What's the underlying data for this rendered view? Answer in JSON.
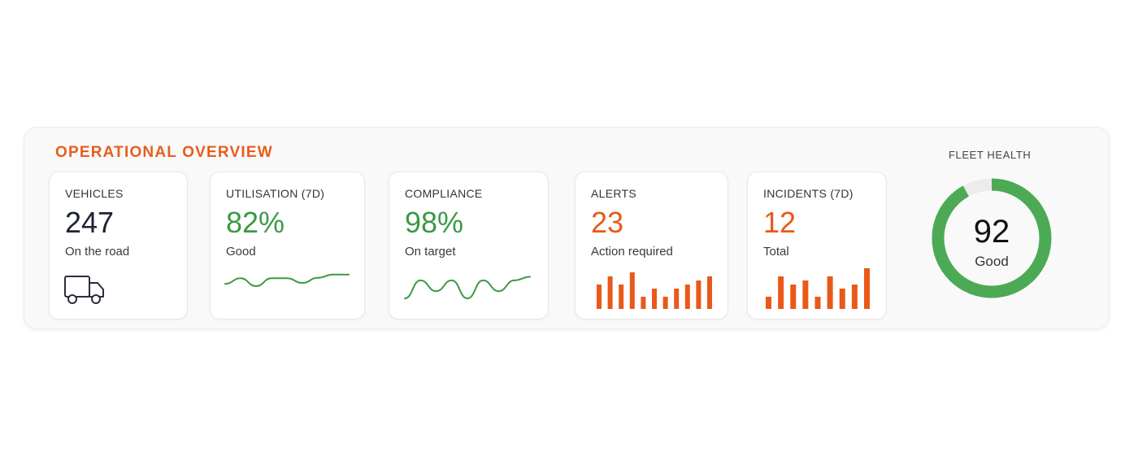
{
  "overview": {
    "title": "OPERATIONAL OVERVIEW",
    "accent_color": "#e85d1c",
    "cards": [
      {
        "label": "VEHICLES",
        "value": "247",
        "sub": "On the road",
        "icon": "truck-icon"
      },
      {
        "label": "UTILISATION (7D)",
        "value": "82%",
        "sub": "Good",
        "color": "#3a9a45"
      },
      {
        "label": "COMPLIANCE",
        "value": "98%",
        "sub": "On target",
        "color": "#3a9a45"
      },
      {
        "label": "ALERTS",
        "value": "23",
        "sub": "Action required",
        "color": "#e8591a"
      },
      {
        "label": "INCIDENTS (7D)",
        "value": "12",
        "sub": "Total",
        "color": "#e8591a"
      }
    ],
    "fleet_health": {
      "label": "FLEET HEALTH",
      "value": "92",
      "sub": "Good",
      "score_fraction": 0.92,
      "ring_color": "#4caa55",
      "track_color": "#ececec"
    }
  },
  "chart_data": [
    {
      "type": "line",
      "name": "utilisation-sparkline",
      "values": [
        40,
        52,
        35,
        52,
        52,
        42,
        53,
        60,
        60
      ],
      "color": "#3a9a45"
    },
    {
      "type": "line",
      "name": "compliance-sparkline",
      "values": [
        20,
        45,
        30,
        45,
        20,
        45,
        30,
        45,
        50
      ],
      "color": "#3a9a45"
    },
    {
      "type": "bar",
      "name": "alerts-bars",
      "values": [
        6,
        8,
        6,
        9,
        3,
        5,
        3,
        5,
        6,
        7,
        8
      ],
      "color": "#e8591a"
    },
    {
      "type": "bar",
      "name": "incidents-bars",
      "values": [
        3,
        8,
        6,
        7,
        3,
        8,
        5,
        6,
        10
      ],
      "color": "#e8591a"
    }
  ]
}
